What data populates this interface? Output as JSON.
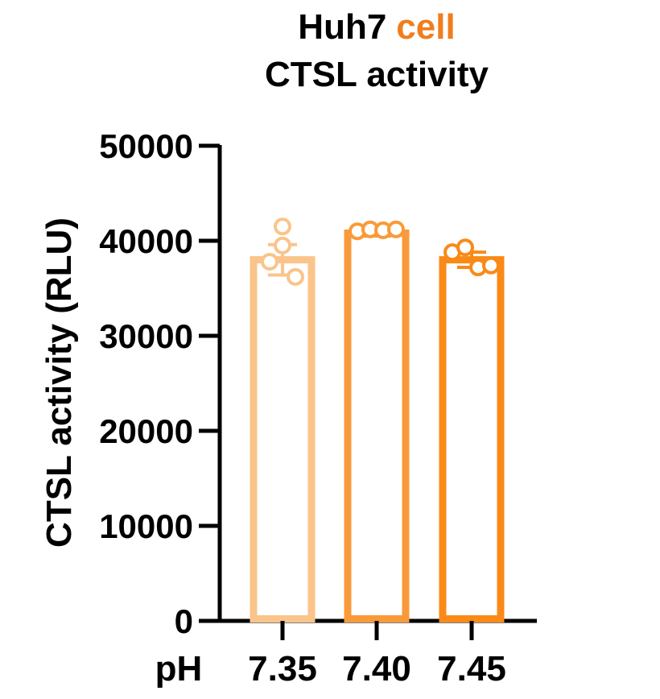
{
  "chart_data": {
    "type": "bar",
    "title_line1_part1": "Huh7",
    "title_line1_part2": "cell",
    "title_line2": "CTSL activity",
    "xlabel_prefix": "pH",
    "ylabel": "CTSL activity (RLU)",
    "categories": [
      "7.35",
      "7.40",
      "7.45"
    ],
    "values": [
      38000,
      40800,
      38000
    ],
    "sem": [
      1600,
      300,
      800
    ],
    "points": [
      [
        41500,
        39500,
        37800,
        36200
      ],
      [
        41000,
        41200,
        41100,
        41200
      ],
      [
        38800,
        39300,
        37200,
        37400
      ]
    ],
    "ylim": [
      0,
      50000
    ],
    "yticks": [
      "0",
      "10000",
      "20000",
      "30000",
      "40000",
      "50000"
    ],
    "colors": {
      "title_accent": "#f07d1e",
      "bars": [
        "#fac48a",
        "#f99a3a",
        "#f98a18"
      ]
    }
  }
}
